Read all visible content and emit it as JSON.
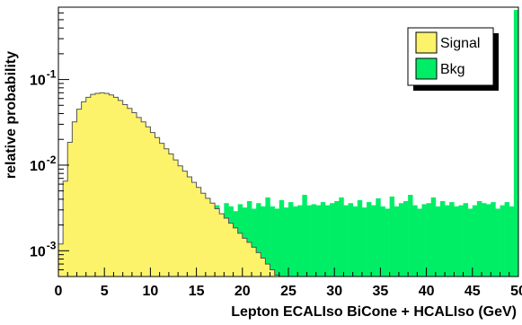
{
  "chart_data": {
    "type": "area",
    "title": "",
    "xlabel": "Lepton ECALIso BiCone + HCALIso  (GeV)",
    "ylabel": "relative probability",
    "xlim": [
      0,
      50
    ],
    "ylim": [
      0.0005,
      0.7
    ],
    "yscale": "log",
    "grid": false,
    "legend_position": "top-right",
    "x_ticks": [
      0,
      5,
      10,
      15,
      20,
      25,
      30,
      35,
      40,
      45,
      50
    ],
    "x_tick_labels": [
      "0",
      "5",
      "10",
      "15",
      "20",
      "25",
      "30",
      "35",
      "40",
      "45",
      "50"
    ],
    "y_tick_labels": [
      {
        "base": "10",
        "exp": "-3",
        "value": 0.001
      },
      {
        "base": "10",
        "exp": "-2",
        "value": 0.01
      },
      {
        "base": "10",
        "exp": "-1",
        "value": 0.1
      }
    ],
    "bin_width": 0.5,
    "series": [
      {
        "name": "Signal",
        "color": "#fdf36a",
        "values": [
          0.0012,
          0.0065,
          0.0185,
          0.032,
          0.045,
          0.055,
          0.062,
          0.067,
          0.069,
          0.07,
          0.069,
          0.066,
          0.062,
          0.057,
          0.051,
          0.046,
          0.041,
          0.036,
          0.032,
          0.028,
          0.024,
          0.021,
          0.018,
          0.0155,
          0.0135,
          0.0115,
          0.0098,
          0.0085,
          0.0073,
          0.0063,
          0.0055,
          0.0047,
          0.0041,
          0.0036,
          0.0031,
          0.0027,
          0.0024,
          0.0021,
          0.00185,
          0.0016,
          0.0014,
          0.00125,
          0.0011,
          0.00095,
          0.00082,
          0.0007,
          0.0006,
          0.00052,
          0.00045,
          0.0004
        ]
      },
      {
        "name": "Bkg",
        "color": "#00ee66",
        "values": [
          null,
          null,
          null,
          null,
          null,
          null,
          0.0009,
          0.0011,
          0.0012,
          0.0014,
          0.0015,
          0.0016,
          0.0017,
          0.0022,
          0.0021,
          0.0024,
          0.0028,
          0.0026,
          0.0029,
          0.0032,
          0.003,
          0.0033,
          0.0031,
          0.0027,
          0.0034,
          0.0024,
          0.0033,
          0.0029,
          0.0028,
          0.0033,
          0.0025,
          0.0031,
          0.0029,
          0.0027,
          0.0034,
          0.0026,
          0.0036,
          0.0033,
          0.0029,
          0.0035,
          0.0032,
          0.0038,
          0.0031,
          0.0036,
          0.0033,
          0.0042,
          0.0033,
          0.0031,
          0.0039,
          0.0032,
          0.0037,
          0.0033,
          0.0034,
          0.0045,
          0.0034,
          0.0035,
          0.0034,
          0.0037,
          0.0034,
          0.0036,
          0.0038,
          0.0042,
          0.0034,
          0.0036,
          0.0033,
          0.0039,
          0.0032,
          0.0037,
          0.0034,
          0.0041,
          0.0033,
          0.0031,
          0.0043,
          0.0033,
          0.0036,
          0.0038,
          0.0045,
          0.0034,
          0.0031,
          0.0035,
          0.0036,
          0.0042,
          0.0033,
          0.0038,
          0.0034,
          0.0037,
          0.0033,
          0.0034,
          0.0036,
          0.0031,
          0.0034,
          0.0038,
          0.0036,
          0.0035,
          0.0037,
          0.0031,
          0.0034,
          0.0037,
          0.0033,
          0.65
        ]
      }
    ]
  }
}
